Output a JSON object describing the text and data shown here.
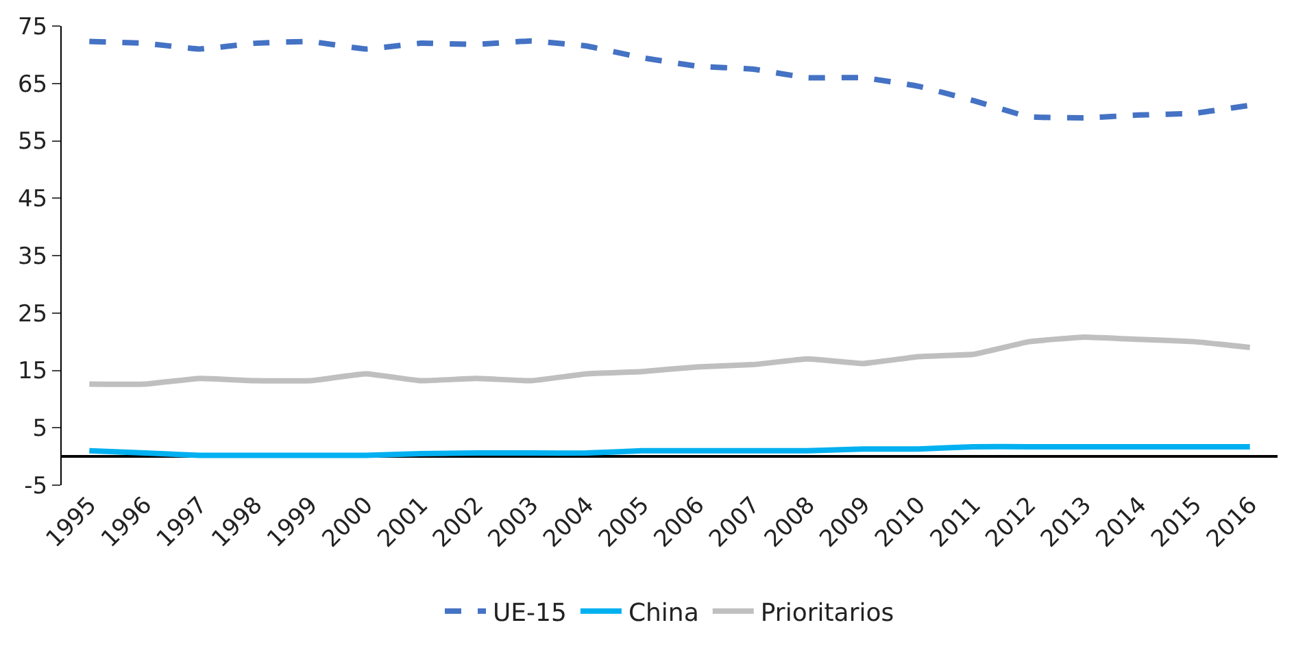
{
  "chart_data": {
    "type": "line",
    "categories": [
      "1995",
      "1996",
      "1997",
      "1998",
      "1999",
      "2000",
      "2001",
      "2002",
      "2003",
      "2004",
      "2005",
      "2006",
      "2007",
      "2008",
      "2009",
      "2010",
      "2011",
      "2012",
      "2013",
      "2014",
      "2015",
      "2016"
    ],
    "series": [
      {
        "name": "UE-15",
        "color": "#4472c4",
        "line_style": "dashed",
        "values": [
          72.3,
          72,
          71,
          72,
          72.3,
          71,
          72,
          71.8,
          72.4,
          71.5,
          69.5,
          68,
          67.5,
          66,
          66,
          64.5,
          62,
          59.2,
          59,
          59.5,
          59.8,
          61.2
        ]
      },
      {
        "name": "China",
        "color": "#00b0f0",
        "line_style": "solid",
        "values": [
          1,
          0.6,
          0.2,
          0.2,
          0.2,
          0.2,
          0.5,
          0.6,
          0.6,
          0.6,
          1,
          1,
          1,
          1,
          1.3,
          1.3,
          1.7,
          1.7,
          1.7,
          1.7,
          1.7,
          1.7
        ]
      },
      {
        "name": "Prioritarios",
        "color": "#bfbfbf",
        "line_style": "solid",
        "values": [
          12.6,
          12.6,
          13.6,
          13.2,
          13.2,
          14.4,
          13.2,
          13.6,
          13.2,
          14.4,
          14.8,
          15.6,
          16,
          17,
          16.2,
          17.4,
          17.8,
          20,
          20.8,
          20.4,
          20,
          19
        ]
      }
    ],
    "ylim": [
      -5,
      75
    ],
    "yticks": [
      -5,
      5,
      15,
      25,
      35,
      45,
      55,
      65,
      75
    ],
    "legend": "bottom",
    "marker": "none"
  }
}
